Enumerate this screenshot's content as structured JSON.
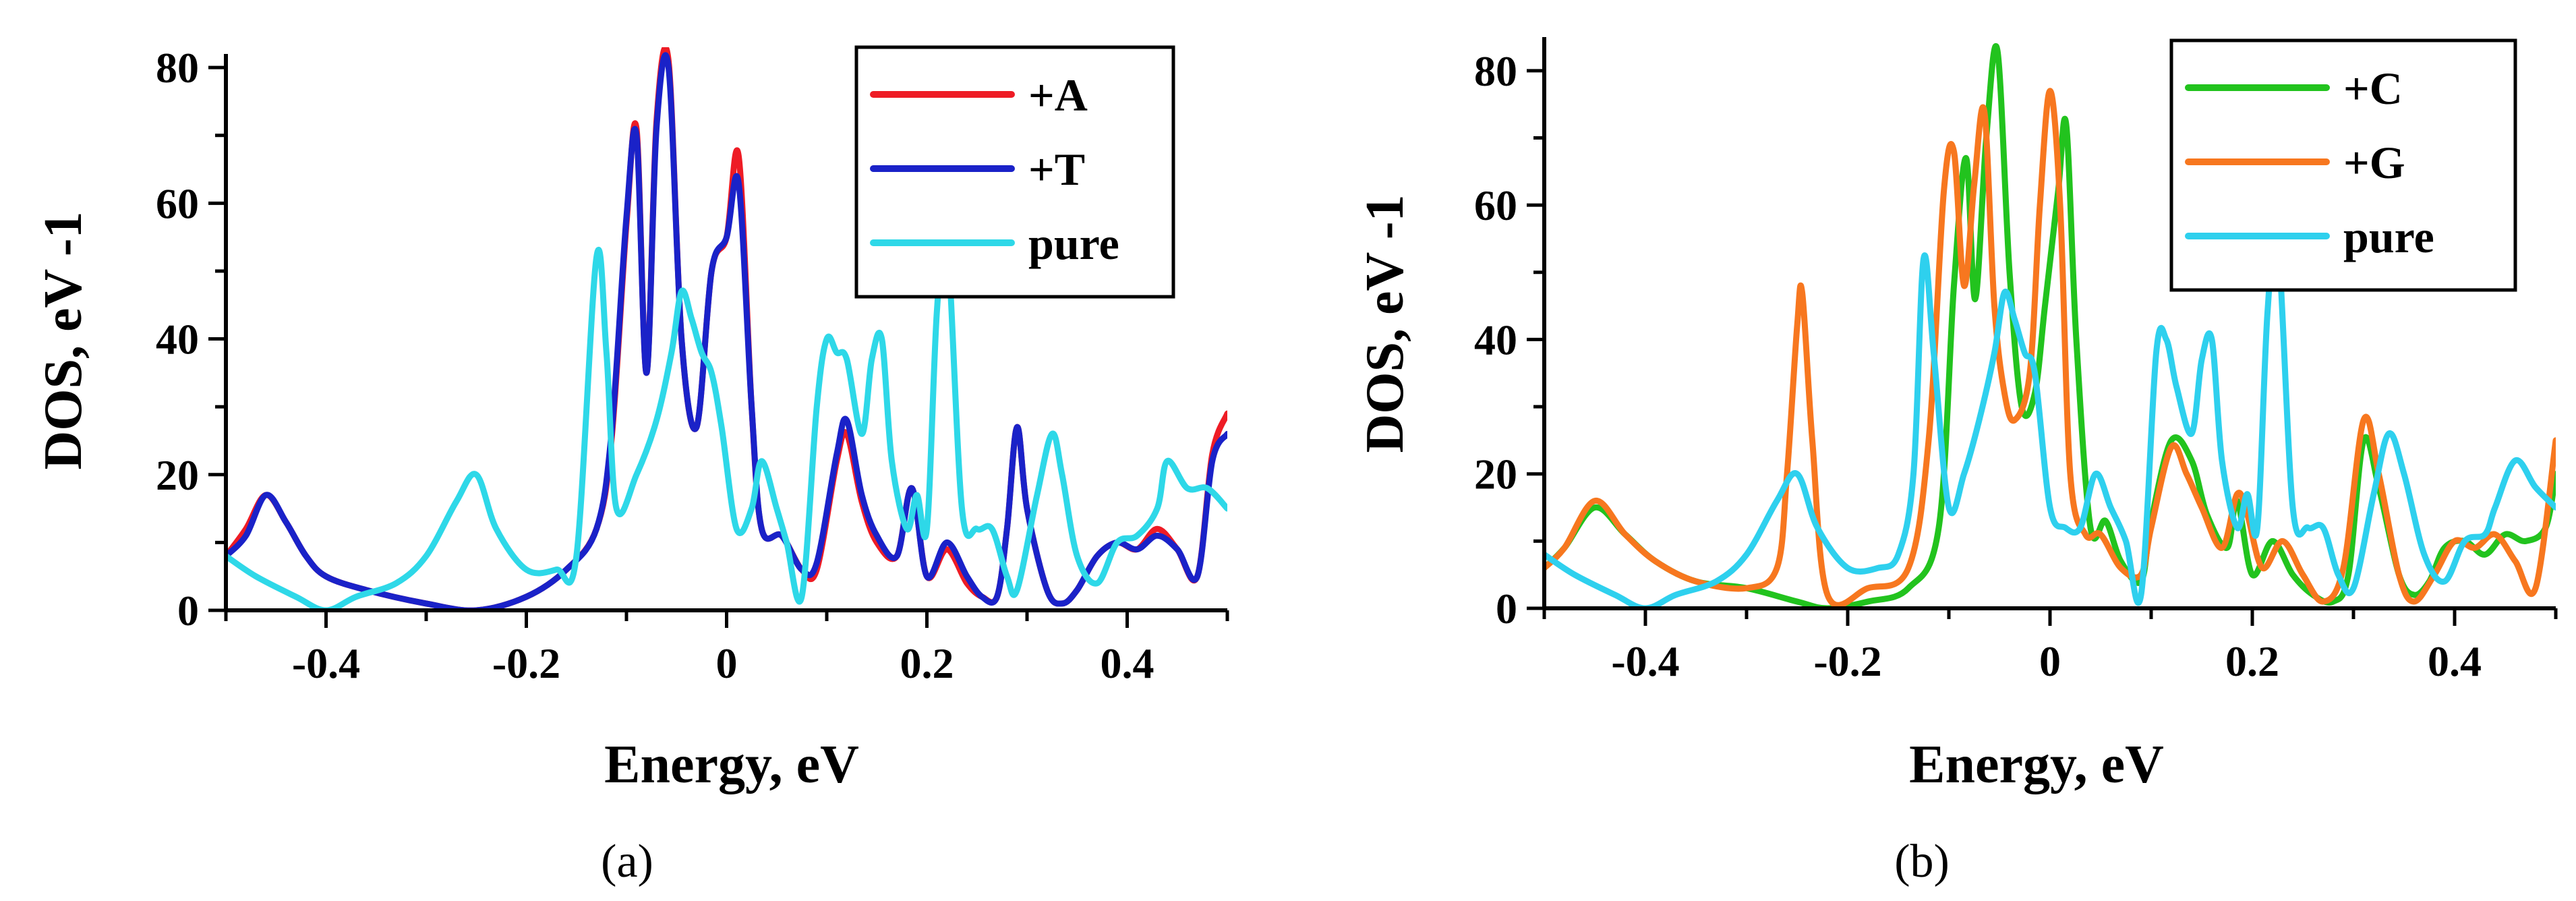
{
  "panels": [
    {
      "caption": "(a)",
      "chart_data": {
        "type": "line",
        "title": "",
        "xlabel": "Energy, eV",
        "ylabel": "DOS, eV -1",
        "xlim": [
          -0.5,
          0.5
        ],
        "ylim": [
          0,
          82
        ],
        "xticks": [
          -0.4,
          -0.2,
          0,
          0.2,
          0.4
        ],
        "xtick_labels": [
          "-0.4",
          "-0.2",
          "0",
          "0.2",
          "0.4"
        ],
        "yticks": [
          0,
          20,
          40,
          60,
          80
        ],
        "ytick_labels": [
          "0",
          "20",
          "40",
          "60",
          "80"
        ],
        "legend_position": "top-right",
        "series": [
          {
            "name": "+A",
            "color": "#ee1c25",
            "x": [
              -0.5,
              -0.48,
              -0.46,
              -0.44,
              -0.42,
              -0.4,
              -0.36,
              -0.3,
              -0.25,
              -0.2,
              -0.16,
              -0.13,
              -0.115,
              -0.1,
              -0.09,
              -0.08,
              -0.07,
              -0.058,
              -0.045,
              -0.03,
              -0.015,
              0,
              0.012,
              0.025,
              0.035,
              0.055,
              0.075,
              0.09,
              0.11,
              0.12,
              0.135,
              0.15,
              0.17,
              0.185,
              0.2,
              0.22,
              0.24,
              0.255,
              0.27,
              0.28,
              0.29,
              0.3,
              0.32,
              0.335,
              0.35,
              0.37,
              0.39,
              0.41,
              0.43,
              0.45,
              0.47,
              0.485,
              0.5
            ],
            "y": [
              8,
              12,
              17,
              13,
              8,
              5,
              3,
              1,
              0,
              2,
              6,
              12,
              25,
              57,
              71,
              35,
              72,
              81,
              40,
              27,
              50,
              55,
              67,
              30,
              12,
              11,
              6,
              6,
              22,
              26,
              16,
              10,
              8,
              18,
              5,
              9,
              4,
              2,
              2,
              12,
              27,
              15,
              3,
              1,
              3,
              8,
              10,
              9,
              12,
              9,
              5,
              23,
              29
            ]
          },
          {
            "name": "+T",
            "color": "#1a22c8",
            "x": [
              -0.5,
              -0.48,
              -0.46,
              -0.44,
              -0.42,
              -0.4,
              -0.36,
              -0.3,
              -0.25,
              -0.2,
              -0.16,
              -0.13,
              -0.115,
              -0.1,
              -0.09,
              -0.08,
              -0.07,
              -0.058,
              -0.045,
              -0.03,
              -0.015,
              0,
              0.012,
              0.025,
              0.035,
              0.055,
              0.075,
              0.09,
              0.11,
              0.12,
              0.135,
              0.15,
              0.17,
              0.185,
              0.2,
              0.22,
              0.24,
              0.255,
              0.27,
              0.28,
              0.29,
              0.3,
              0.32,
              0.335,
              0.35,
              0.37,
              0.39,
              0.41,
              0.43,
              0.45,
              0.47,
              0.485,
              0.5
            ],
            "y": [
              8,
              11,
              17,
              13,
              8,
              5,
              3,
              1,
              0,
              2,
              6,
              12,
              26,
              58,
              70,
              35,
              71,
              80,
              40,
              27,
              50,
              55,
              63,
              30,
              12,
              11,
              6,
              7,
              23,
              28,
              17,
              11,
              8,
              18,
              5,
              10,
              5,
              2,
              2,
              12,
              27,
              15,
              3,
              1,
              3,
              8,
              10,
              9,
              11,
              9,
              5,
              22,
              26
            ]
          },
          {
            "name": "pure",
            "color": "#2ed8e8",
            "x": [
              -0.5,
              -0.47,
              -0.43,
              -0.4,
              -0.37,
              -0.33,
              -0.3,
              -0.27,
              -0.25,
              -0.23,
              -0.2,
              -0.17,
              -0.15,
              -0.13,
              -0.12,
              -0.11,
              -0.09,
              -0.07,
              -0.055,
              -0.045,
              -0.035,
              -0.025,
              -0.015,
              -0.005,
              0.01,
              0.025,
              0.035,
              0.05,
              0.06,
              0.075,
              0.09,
              0.1,
              0.11,
              0.12,
              0.135,
              0.145,
              0.155,
              0.165,
              0.18,
              0.19,
              0.2,
              0.21,
              0.22,
              0.235,
              0.25,
              0.265,
              0.28,
              0.29,
              0.31,
              0.325,
              0.335,
              0.35,
              0.37,
              0.39,
              0.41,
              0.43,
              0.44,
              0.46,
              0.48,
              0.5
            ],
            "y": [
              8,
              5,
              2,
              0,
              2,
              4,
              8,
              16,
              20,
              12,
              6,
              6,
              8,
              52,
              38,
              15,
              20,
              28,
              38,
              47,
              43,
              38,
              35,
              27,
              12,
              15,
              22,
              15,
              10,
              2,
              30,
              40,
              38,
              37,
              26,
              37,
              40,
              22,
              12,
              17,
              12,
              44,
              55,
              15,
              12,
              12,
              5,
              3,
              17,
              26,
              20,
              8,
              4,
              10,
              11,
              15,
              22,
              18,
              18,
              15
            ]
          }
        ]
      }
    },
    {
      "caption": "(b)",
      "chart_data": {
        "type": "line",
        "title": "",
        "xlabel": "Energy, eV",
        "ylabel": "DOS, eV -1",
        "xlim": [
          -0.5,
          0.5
        ],
        "ylim": [
          0,
          85
        ],
        "xticks": [
          -0.4,
          -0.2,
          0,
          0.2,
          0.4
        ],
        "xtick_labels": [
          "-0.4",
          "-0.2",
          "0",
          "0.2",
          "0.4"
        ],
        "yticks": [
          0,
          20,
          40,
          60,
          80
        ],
        "ytick_labels": [
          "0",
          "20",
          "40",
          "60",
          "80"
        ],
        "legend_position": "top-right",
        "series": [
          {
            "name": "+C",
            "color": "#22c31e",
            "x": [
              -0.5,
              -0.48,
              -0.45,
              -0.42,
              -0.39,
              -0.35,
              -0.3,
              -0.25,
              -0.22,
              -0.18,
              -0.14,
              -0.11,
              -0.095,
              -0.083,
              -0.074,
              -0.063,
              -0.052,
              -0.04,
              -0.028,
              -0.015,
              -0.005,
              0.008,
              0.016,
              0.026,
              0.04,
              0.055,
              0.07,
              0.09,
              0.1,
              0.12,
              0.14,
              0.155,
              0.175,
              0.185,
              0.2,
              0.22,
              0.24,
              0.26,
              0.28,
              0.295,
              0.31,
              0.325,
              0.345,
              0.36,
              0.375,
              0.39,
              0.41,
              0.43,
              0.45,
              0.47,
              0.49,
              0.5
            ],
            "y": [
              6,
              9,
              15,
              11,
              7,
              4,
              3,
              1,
              0,
              1,
              3,
              12,
              48,
              67,
              46,
              70,
              83,
              50,
              30,
              32,
              45,
              62,
              72,
              40,
              12,
              13,
              7,
              4,
              13,
              25,
              22,
              14,
              9,
              16,
              5,
              10,
              5,
              2,
              1,
              5,
              25,
              18,
              5,
              2,
              4,
              9,
              10,
              8,
              11,
              10,
              12,
              20
            ]
          },
          {
            "name": "+G",
            "color": "#f7771f",
            "x": [
              -0.5,
              -0.48,
              -0.45,
              -0.42,
              -0.39,
              -0.35,
              -0.3,
              -0.27,
              -0.26,
              -0.25,
              -0.245,
              -0.235,
              -0.22,
              -0.18,
              -0.14,
              -0.12,
              -0.105,
              -0.095,
              -0.085,
              -0.075,
              -0.065,
              -0.055,
              -0.045,
              -0.035,
              -0.02,
              -0.01,
              0,
              0.01,
              0.02,
              0.035,
              0.05,
              0.07,
              0.09,
              0.1,
              0.12,
              0.135,
              0.15,
              0.17,
              0.185,
              0.195,
              0.21,
              0.23,
              0.25,
              0.27,
              0.29,
              0.31,
              0.325,
              0.345,
              0.36,
              0.38,
              0.4,
              0.42,
              0.44,
              0.46,
              0.48,
              0.5
            ],
            "y": [
              6,
              9,
              16,
              11,
              7,
              4,
              3,
              6,
              20,
              42,
              47,
              25,
              2,
              3,
              6,
              25,
              62,
              68,
              48,
              63,
              74,
              45,
              32,
              28,
              35,
              60,
              77,
              60,
              20,
              11,
              11,
              6,
              5,
              12,
              24,
              20,
              15,
              9,
              17,
              14,
              6,
              10,
              5,
              1,
              6,
              28,
              20,
              5,
              1,
              5,
              10,
              9,
              11,
              7,
              3,
              25
            ]
          },
          {
            "name": "pure",
            "color": "#2ed0ee",
            "x": [
              -0.5,
              -0.47,
              -0.43,
              -0.4,
              -0.37,
              -0.33,
              -0.3,
              -0.27,
              -0.25,
              -0.23,
              -0.2,
              -0.17,
              -0.15,
              -0.135,
              -0.125,
              -0.115,
              -0.1,
              -0.085,
              -0.07,
              -0.055,
              -0.045,
              -0.035,
              -0.025,
              -0.015,
              0,
              0.015,
              0.03,
              0.045,
              0.06,
              0.075,
              0.09,
              0.105,
              0.115,
              0.125,
              0.14,
              0.15,
              0.16,
              0.17,
              0.185,
              0.195,
              0.205,
              0.215,
              0.225,
              0.24,
              0.255,
              0.27,
              0.285,
              0.3,
              0.32,
              0.335,
              0.35,
              0.37,
              0.39,
              0.41,
              0.43,
              0.44,
              0.46,
              0.48,
              0.5
            ],
            "y": [
              8,
              5,
              2,
              0,
              2,
              4,
              8,
              16,
              20,
              12,
              6,
              6,
              8,
              20,
              52,
              38,
              15,
              20,
              28,
              38,
              47,
              43,
              38,
              35,
              15,
              12,
              12,
              20,
              15,
              10,
              2,
              38,
              40,
              33,
              26,
              37,
              40,
              22,
              12,
              17,
              12,
              44,
              55,
              15,
              12,
              12,
              5,
              3,
              17,
              26,
              20,
              8,
              4,
              10,
              11,
              15,
              22,
              18,
              15
            ]
          }
        ]
      }
    }
  ]
}
